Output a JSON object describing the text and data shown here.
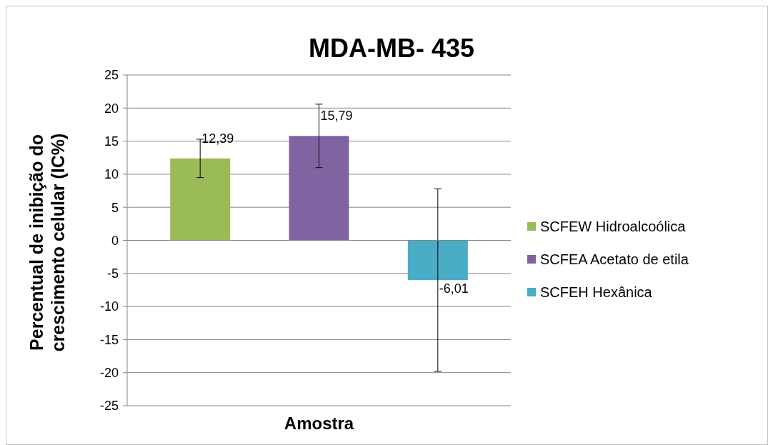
{
  "chart_data": {
    "type": "bar",
    "title": "MDA-MB- 435",
    "xlabel": "Amostra",
    "ylabel": "Percentual de inibição do\ncrescimento celular (IC%)",
    "categories": [
      null
    ],
    "series": [
      {
        "name": "SCFEW Hidroalcoólica",
        "color": "#9bbb59",
        "values": [
          12.39
        ],
        "errors": [
          2.9
        ],
        "value_labels": [
          "12,39"
        ]
      },
      {
        "name": "SCFEA Acetato de etila",
        "color": "#8064a2",
        "values": [
          15.79
        ],
        "errors": [
          4.8
        ],
        "value_labels": [
          "15,79"
        ]
      },
      {
        "name": "SCFEH Hexânica",
        "color": "#4bacc6",
        "values": [
          -6.01
        ],
        "errors": [
          13.8
        ],
        "value_labels": [
          "-6,01"
        ]
      }
    ],
    "ylim": [
      -25,
      25
    ],
    "yticks": [
      -25,
      -20,
      -15,
      -10,
      -5,
      0,
      5,
      10,
      15,
      20,
      25
    ],
    "grid": "y",
    "legend": "right"
  }
}
